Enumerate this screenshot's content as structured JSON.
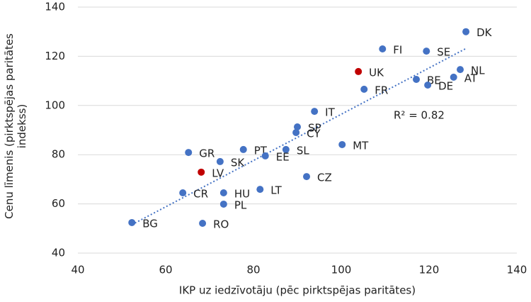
{
  "chart_data": {
    "type": "scatter",
    "xlabel": "IKP uz iedzīvotāju (pēc pirktspējas paritātes)",
    "ylabel": "Cenu līmenis (pirktspējas paritātes indekss)",
    "annotation": "R² = 0.82",
    "labels": [
      "DK",
      "FI",
      "SE",
      "NL",
      "UK",
      "BE",
      "AT",
      "DE",
      "FR",
      "IT",
      "SP",
      "CY",
      "MT",
      "PT",
      "SL",
      "EE",
      "GR",
      "SK",
      "LV",
      "CZ",
      "CR",
      "HU",
      "LT",
      "PL",
      "BG",
      "RO"
    ],
    "x": [
      128.4,
      109.4,
      119.4,
      127.1,
      103.9,
      117.1,
      125.6,
      119.7,
      105.2,
      93.9,
      90,
      89.7,
      100.2,
      77.7,
      87.4,
      82.7,
      65.2,
      72.4,
      68.1,
      92.1,
      63.9,
      73.2,
      81.5,
      73.2,
      52.3,
      68.4
    ],
    "y": [
      130,
      123,
      122.1,
      114.6,
      113.8,
      110.6,
      111.5,
      108.3,
      106.6,
      97.6,
      91.3,
      89,
      84.1,
      82.1,
      82.1,
      79.5,
      80.9,
      77.2,
      72.9,
      71.1,
      64.5,
      64.5,
      65.9,
      59.9,
      52.4,
      52.1
    ],
    "colors": [
      "#4472c4",
      "#4472c4",
      "#4472c4",
      "#4472c4",
      "#c00000",
      "#4472c4",
      "#4472c4",
      "#4472c4",
      "#4472c4",
      "#4472c4",
      "#4472c4",
      "#4472c4",
      "#4472c4",
      "#4472c4",
      "#4472c4",
      "#4472c4",
      "#4472c4",
      "#4472c4",
      "#c00000",
      "#4472c4",
      "#4472c4",
      "#4472c4",
      "#4472c4",
      "#4472c4",
      "#4472c4",
      "#4472c4"
    ],
    "trendline_color": "#4472c4",
    "xlim": [
      40,
      140
    ],
    "xticks": [
      40,
      60,
      80,
      100,
      120,
      140
    ],
    "ylim": [
      40,
      140
    ],
    "yticks": [
      40,
      60,
      80,
      100,
      120,
      140
    ],
    "grid": true
  }
}
